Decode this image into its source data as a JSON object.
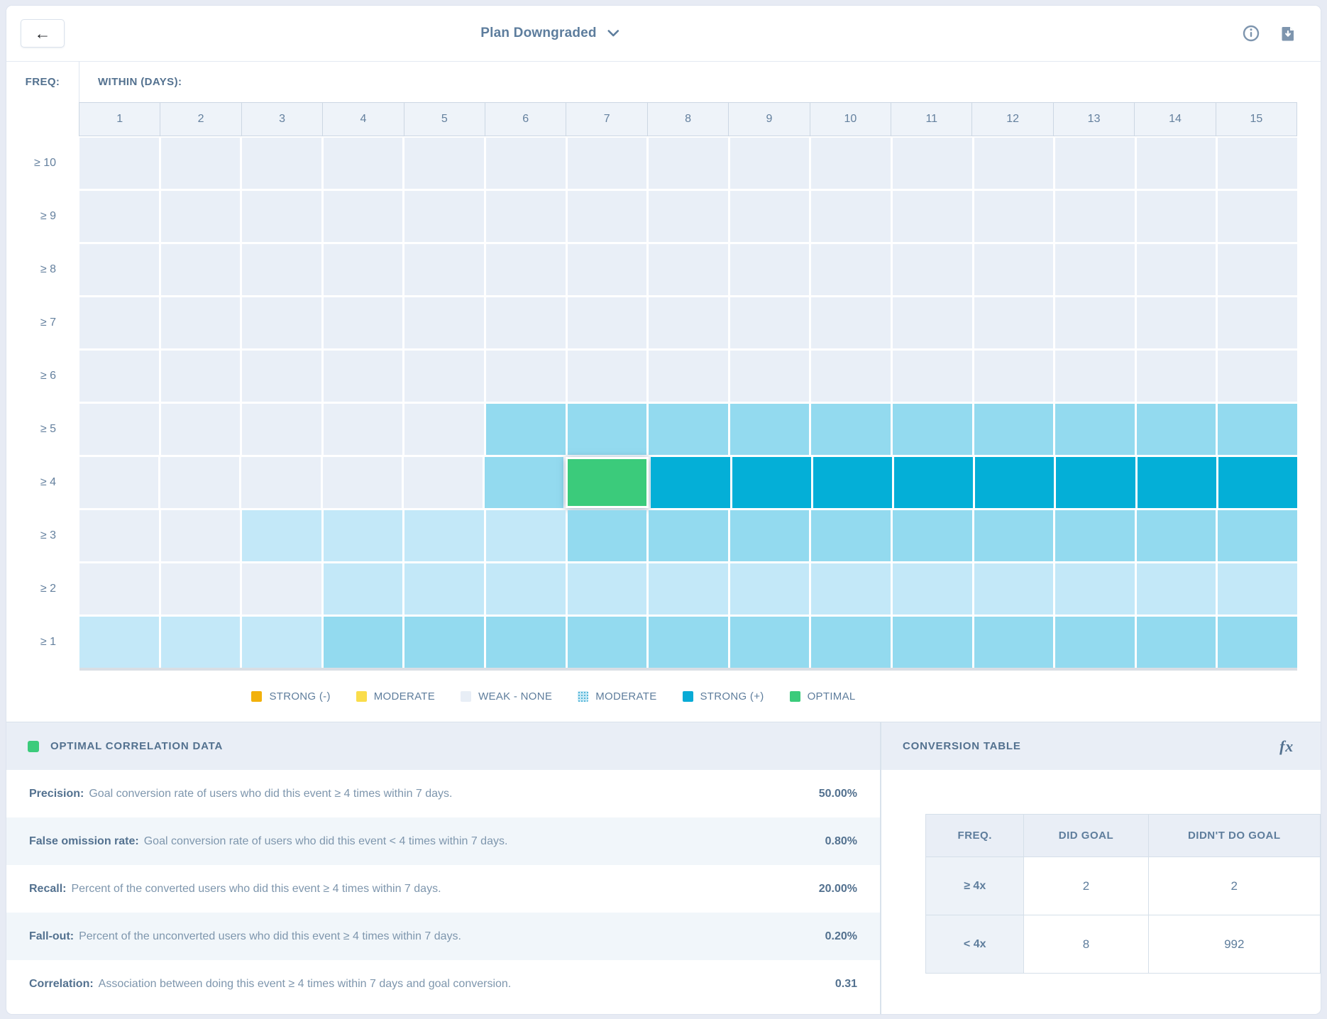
{
  "topbar": {
    "back_label": "←",
    "title": "Plan Downgraded",
    "icons": [
      "chevron-down-icon",
      "info-icon",
      "download-icon"
    ]
  },
  "heatmap": {
    "freq_label": "FREQ:",
    "within_label": "WITHIN (DAYS):",
    "columns": [
      "1",
      "2",
      "3",
      "4",
      "5",
      "6",
      "7",
      "8",
      "9",
      "10",
      "11",
      "12",
      "13",
      "14",
      "15"
    ],
    "rows": [
      {
        "label": "≥ 10",
        "cells": [
          "weak",
          "weak",
          "weak",
          "weak",
          "weak",
          "weak",
          "weak",
          "weak",
          "weak",
          "weak",
          "weak",
          "weak",
          "weak",
          "weak",
          "weak"
        ]
      },
      {
        "label": "≥ 9",
        "cells": [
          "weak",
          "weak",
          "weak",
          "weak",
          "weak",
          "weak",
          "weak",
          "weak",
          "weak",
          "weak",
          "weak",
          "weak",
          "weak",
          "weak",
          "weak"
        ]
      },
      {
        "label": "≥ 8",
        "cells": [
          "weak",
          "weak",
          "weak",
          "weak",
          "weak",
          "weak",
          "weak",
          "weak",
          "weak",
          "weak",
          "weak",
          "weak",
          "weak",
          "weak",
          "weak"
        ]
      },
      {
        "label": "≥ 7",
        "cells": [
          "weak",
          "weak",
          "weak",
          "weak",
          "weak",
          "weak",
          "weak",
          "weak",
          "weak",
          "weak",
          "weak",
          "weak",
          "weak",
          "weak",
          "weak"
        ]
      },
      {
        "label": "≥ 6",
        "cells": [
          "weak",
          "weak",
          "weak",
          "weak",
          "weak",
          "weak",
          "weak",
          "weak",
          "weak",
          "weak",
          "weak",
          "weak",
          "weak",
          "weak",
          "weak"
        ]
      },
      {
        "label": "≥ 5",
        "cells": [
          "weak",
          "weak",
          "weak",
          "weak",
          "weak",
          "moderate",
          "moderate",
          "moderate",
          "moderate",
          "moderate",
          "moderate",
          "moderate",
          "moderate",
          "moderate",
          "moderate"
        ]
      },
      {
        "label": "≥ 4",
        "cells": [
          "weak",
          "weak",
          "weak",
          "weak",
          "weak",
          "moderate",
          "optimal",
          "strong",
          "strong",
          "strong",
          "strong",
          "strong",
          "strong",
          "strong",
          "strong"
        ]
      },
      {
        "label": "≥ 3",
        "cells": [
          "weak",
          "weak",
          "light",
          "light",
          "light",
          "light",
          "moderate",
          "moderate",
          "moderate",
          "moderate",
          "moderate",
          "moderate",
          "moderate",
          "moderate",
          "moderate"
        ]
      },
      {
        "label": "≥ 2",
        "cells": [
          "weak",
          "weak",
          "weak",
          "light",
          "light",
          "light",
          "light",
          "light",
          "light",
          "light",
          "light",
          "light",
          "light",
          "light",
          "light"
        ]
      },
      {
        "label": "≥ 1",
        "cells": [
          "light",
          "light",
          "light",
          "moderate",
          "moderate",
          "moderate",
          "moderate",
          "moderate",
          "moderate",
          "moderate",
          "moderate",
          "moderate",
          "moderate",
          "moderate",
          "moderate"
        ]
      }
    ],
    "colors": {
      "weak": "#e9eff7",
      "light": "#c3e8f8",
      "moderate": "#93daef",
      "strong": "#04afd7",
      "optimal": "#3bcb7b"
    }
  },
  "legend": {
    "items": [
      {
        "label": "STRONG (-)",
        "color": "#f2b10c",
        "dotted": false
      },
      {
        "label": "MODERATE",
        "color": "#fadd4b",
        "dotted": false
      },
      {
        "label": "WEAK - NONE",
        "color": "#e8eef6",
        "dotted": false
      },
      {
        "label": "MODERATE",
        "color": "#c8eaf6",
        "dotted": true
      },
      {
        "label": "STRONG (+)",
        "color": "#09abd6",
        "dotted": false
      },
      {
        "label": "OPTIMAL",
        "color": "#3bcb7b",
        "dotted": false
      }
    ]
  },
  "optimal_panel": {
    "title": "OPTIMAL CORRELATION DATA",
    "swatch_color": "#3bcb7b",
    "rows": [
      {
        "label": "Precision:",
        "description": "Goal conversion rate of users who did this event ≥ 4 times within 7 days.",
        "value": "50.00%"
      },
      {
        "label": "False omission rate:",
        "description": "Goal conversion rate of users who did this event < 4 times within 7 days.",
        "value": "0.80%"
      },
      {
        "label": "Recall:",
        "description": "Percent of the converted users who did this event ≥ 4 times within 7 days.",
        "value": "20.00%"
      },
      {
        "label": "Fall-out:",
        "description": "Percent of the unconverted users who did this event ≥ 4 times within 7 days.",
        "value": "0.20%"
      },
      {
        "label": "Correlation:",
        "description": "Association between doing this event ≥ 4 times within 7 days and goal conversion.",
        "value": "0.31"
      }
    ]
  },
  "conversion_panel": {
    "title": "CONVERSION TABLE",
    "fx_label": "fx",
    "headers": [
      "FREQ.",
      "DID GOAL",
      "DIDN'T DO GOAL"
    ],
    "rows": [
      {
        "freq": "≥ 4x",
        "did_goal": "2",
        "didnt_do_goal": "2"
      },
      {
        "freq": "< 4x",
        "did_goal": "8",
        "didnt_do_goal": "992"
      }
    ]
  },
  "chart_data": {
    "type": "heatmap",
    "title": "Plan Downgraded",
    "xlabel": "WITHIN (DAYS)",
    "ylabel": "FREQ",
    "x": [
      1,
      2,
      3,
      4,
      5,
      6,
      7,
      8,
      9,
      10,
      11,
      12,
      13,
      14,
      15
    ],
    "y": [
      "≥ 10",
      "≥ 9",
      "≥ 8",
      "≥ 7",
      "≥ 6",
      "≥ 5",
      "≥ 4",
      "≥ 3",
      "≥ 2",
      "≥ 1"
    ],
    "legend_scale": [
      "STRONG (-)",
      "MODERATE",
      "WEAK - NONE",
      "MODERATE",
      "STRONG (+)",
      "OPTIMAL"
    ],
    "cell_categories_by_row": {
      "≥ 10": [
        "weak",
        "weak",
        "weak",
        "weak",
        "weak",
        "weak",
        "weak",
        "weak",
        "weak",
        "weak",
        "weak",
        "weak",
        "weak",
        "weak",
        "weak"
      ],
      "≥ 9": [
        "weak",
        "weak",
        "weak",
        "weak",
        "weak",
        "weak",
        "weak",
        "weak",
        "weak",
        "weak",
        "weak",
        "weak",
        "weak",
        "weak",
        "weak"
      ],
      "≥ 8": [
        "weak",
        "weak",
        "weak",
        "weak",
        "weak",
        "weak",
        "weak",
        "weak",
        "weak",
        "weak",
        "weak",
        "weak",
        "weak",
        "weak",
        "weak"
      ],
      "≥ 7": [
        "weak",
        "weak",
        "weak",
        "weak",
        "weak",
        "weak",
        "weak",
        "weak",
        "weak",
        "weak",
        "weak",
        "weak",
        "weak",
        "weak",
        "weak"
      ],
      "≥ 6": [
        "weak",
        "weak",
        "weak",
        "weak",
        "weak",
        "weak",
        "weak",
        "weak",
        "weak",
        "weak",
        "weak",
        "weak",
        "weak",
        "weak",
        "weak"
      ],
      "≥ 5": [
        "weak",
        "weak",
        "weak",
        "weak",
        "weak",
        "moderate",
        "moderate",
        "moderate",
        "moderate",
        "moderate",
        "moderate",
        "moderate",
        "moderate",
        "moderate",
        "moderate"
      ],
      "≥ 4": [
        "weak",
        "weak",
        "weak",
        "weak",
        "weak",
        "moderate",
        "optimal",
        "strong",
        "strong",
        "strong",
        "strong",
        "strong",
        "strong",
        "strong",
        "strong"
      ],
      "≥ 3": [
        "weak",
        "weak",
        "light-moderate",
        "light-moderate",
        "light-moderate",
        "light-moderate",
        "moderate",
        "moderate",
        "moderate",
        "moderate",
        "moderate",
        "moderate",
        "moderate",
        "moderate",
        "moderate"
      ],
      "≥ 2": [
        "weak",
        "weak",
        "weak",
        "light-moderate",
        "light-moderate",
        "light-moderate",
        "light-moderate",
        "light-moderate",
        "light-moderate",
        "light-moderate",
        "light-moderate",
        "light-moderate",
        "light-moderate",
        "light-moderate",
        "light-moderate"
      ],
      "≥ 1": [
        "light-moderate",
        "light-moderate",
        "light-moderate",
        "moderate",
        "moderate",
        "moderate",
        "moderate",
        "moderate",
        "moderate",
        "moderate",
        "moderate",
        "moderate",
        "moderate",
        "moderate",
        "moderate"
      ]
    },
    "optimal_cell": {
      "freq": "≥ 4",
      "within_days": 7
    },
    "stats": {
      "precision": "50.00%",
      "false_omission_rate": "0.80%",
      "recall": "20.00%",
      "fall_out": "0.20%",
      "correlation": 0.31
    },
    "conversion_table": [
      {
        "freq": "≥ 4x",
        "did_goal": 2,
        "didnt_do_goal": 2
      },
      {
        "freq": "< 4x",
        "did_goal": 8,
        "didnt_do_goal": 992
      }
    ]
  }
}
